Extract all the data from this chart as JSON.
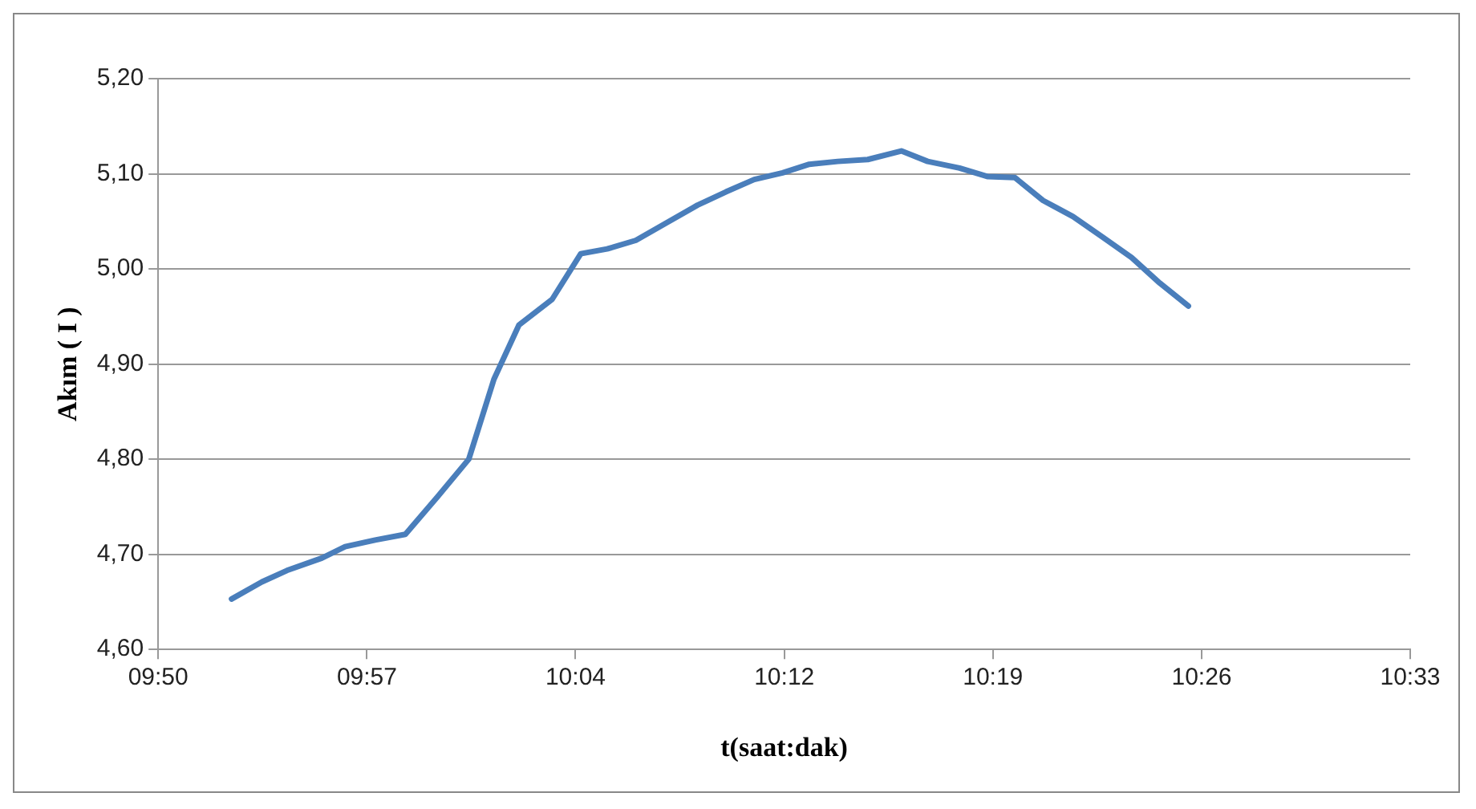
{
  "chart_data": {
    "type": "line",
    "xlabel": "t(saat:dak)",
    "ylabel": "Akım ( I )",
    "x": [
      9.8753,
      9.8927,
      9.907,
      9.927,
      9.9403,
      9.9575,
      9.9748,
      9.993,
      10.0111,
      10.0255,
      10.0398,
      10.0588,
      10.0752,
      10.0903,
      10.1067,
      10.1248,
      10.142,
      10.1583,
      10.1745,
      10.1907,
      10.206,
      10.2223,
      10.2395,
      10.2587,
      10.2738,
      10.292,
      10.3083,
      10.3237,
      10.3398,
      10.357,
      10.3742,
      10.3905,
      10.4067,
      10.423
    ],
    "series": [
      {
        "color": "#4a7ebb",
        "values": [
          4.653,
          4.671,
          4.683,
          4.696,
          4.708,
          4.715,
          4.721,
          4.76,
          4.8,
          4.884,
          4.941,
          4.968,
          5.016,
          5.021,
          5.03,
          5.049,
          5.067,
          5.081,
          5.094,
          5.101,
          5.11,
          5.113,
          5.115,
          5.124,
          5.113,
          5.106,
          5.097,
          5.096,
          5.072,
          5.055,
          5.033,
          5.012,
          4.985,
          4.961
        ]
      }
    ],
    "xlim": [
      9.8333,
      10.55
    ],
    "xticks": [
      {
        "value": 9.8333,
        "label": "09:50"
      },
      {
        "value": 9.9528,
        "label": "09:57"
      },
      {
        "value": 10.0722,
        "label": "10:04"
      },
      {
        "value": 10.1917,
        "label": "10:12"
      },
      {
        "value": 10.3111,
        "label": "10:19"
      },
      {
        "value": 10.4306,
        "label": "10:26"
      },
      {
        "value": 10.55,
        "label": "10:33"
      }
    ],
    "ylim": [
      4.6,
      5.2
    ],
    "yticks": [
      {
        "value": 4.6,
        "label": "4,60"
      },
      {
        "value": 4.7,
        "label": "4,70"
      },
      {
        "value": 4.8,
        "label": "4,80"
      },
      {
        "value": 4.9,
        "label": "4,90"
      },
      {
        "value": 5.0,
        "label": "5,00"
      },
      {
        "value": 5.1,
        "label": "5,10"
      },
      {
        "value": 5.2,
        "label": "5,20"
      }
    ],
    "grid": "y",
    "legend": false,
    "marker": "none",
    "line_style": "solid"
  }
}
